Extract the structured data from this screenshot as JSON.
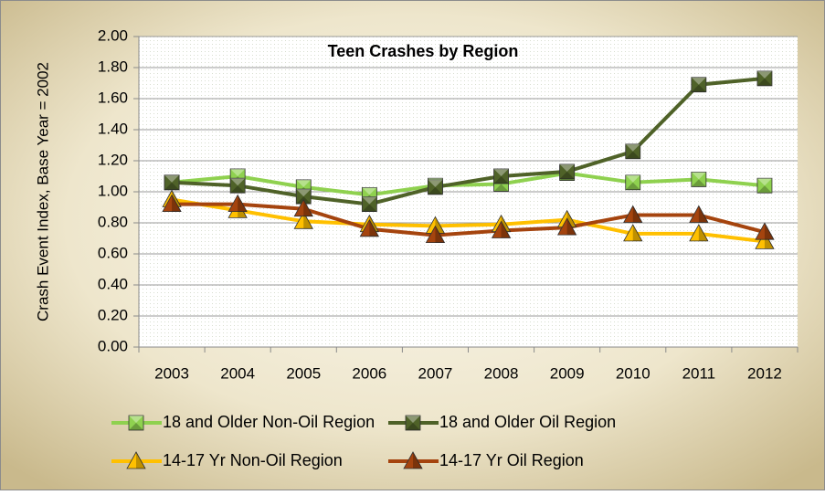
{
  "chart_data": {
    "type": "line",
    "title": "Teen Crashes by Region",
    "y_label": "Crash Event Index, Base Year = 2002",
    "categories": [
      "2003",
      "2004",
      "2005",
      "2006",
      "2007",
      "2008",
      "2009",
      "2010",
      "2011",
      "2012"
    ],
    "series": [
      {
        "name": "18 and Older Non-Oil Region",
        "color": "#8fd14f",
        "marker": "square",
        "values": [
          1.06,
          1.1,
          1.03,
          0.98,
          1.04,
          1.05,
          1.12,
          1.06,
          1.08,
          1.04
        ]
      },
      {
        "name": "18 and Older Oil Region",
        "color": "#4f6228",
        "marker": "square",
        "values": [
          1.06,
          1.04,
          0.97,
          0.92,
          1.03,
          1.1,
          1.13,
          1.26,
          1.69,
          1.73
        ]
      },
      {
        "name": "14-17 Yr Non-Oil Region",
        "color": "#ffc000",
        "marker": "triangle",
        "values": [
          0.95,
          0.88,
          0.81,
          0.79,
          0.78,
          0.79,
          0.82,
          0.73,
          0.73,
          0.68
        ]
      },
      {
        "name": "14-17 Yr Oil Region",
        "color": "#a5440e",
        "marker": "triangle",
        "values": [
          0.92,
          0.92,
          0.89,
          0.76,
          0.72,
          0.75,
          0.77,
          0.85,
          0.85,
          0.74
        ]
      }
    ],
    "ylim": [
      0,
      2
    ],
    "yticks": [
      {
        "value": 0,
        "label": "0.00"
      },
      {
        "value": 0.2,
        "label": "0.20"
      },
      {
        "value": 0.4,
        "label": "0.40"
      },
      {
        "value": 0.6,
        "label": "0.60"
      },
      {
        "value": 0.8,
        "label": "0.80"
      },
      {
        "value": 1,
        "label": "1.00"
      },
      {
        "value": 1.2,
        "label": "1.20"
      },
      {
        "value": 1.4,
        "label": "1.40"
      },
      {
        "value": 1.6,
        "label": "1.60"
      },
      {
        "value": 1.8,
        "label": "1.80"
      },
      {
        "value": 2,
        "label": "2.00"
      }
    ],
    "grid": true,
    "legend": "bottom"
  }
}
